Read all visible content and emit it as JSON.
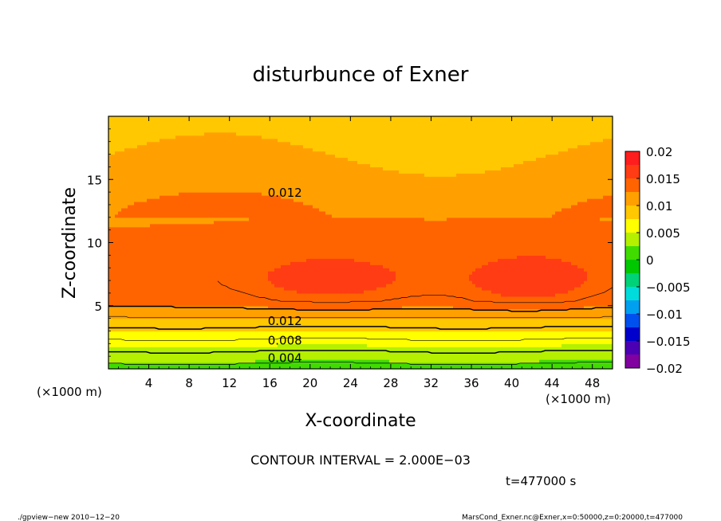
{
  "chart_data": {
    "type": "heatmap",
    "title": "disturbunce of Exner",
    "xlabel": "X-coordinate",
    "ylabel": "Z-coordinate",
    "x_unit_left": "(×1000 m)",
    "x_unit_right": "(×1000 m)",
    "xlim": [
      0,
      50
    ],
    "ylim": [
      0,
      20
    ],
    "x_ticks": [
      4,
      8,
      12,
      16,
      20,
      24,
      28,
      32,
      36,
      40,
      44,
      48
    ],
    "x_tick_labels": [
      "4",
      "8",
      "12",
      "16",
      "20",
      "24",
      "28",
      "32",
      "36",
      "40",
      "44",
      "48"
    ],
    "y_ticks": [
      5,
      10,
      15
    ],
    "y_tick_labels": [
      "5",
      "10",
      "15"
    ],
    "contour_labels": [
      {
        "text": "0.012",
        "x": 17.5,
        "z": 14.0
      },
      {
        "text": "0.012",
        "x": 17.5,
        "z": 3.85
      },
      {
        "text": "0.008",
        "x": 17.5,
        "z": 2.3
      },
      {
        "text": "0.004",
        "x": 17.5,
        "z": 0.9
      }
    ],
    "colorbar": {
      "min": -0.02,
      "max": 0.02,
      "step": 0.0025,
      "tick_values": [
        0.02,
        0.015,
        0.01,
        0.005,
        0,
        -0.005,
        -0.01,
        -0.015,
        -0.02
      ],
      "tick_labels": [
        "0.02",
        "0.015",
        "0.01",
        "0.005",
        "0",
        "−0.005",
        "−0.01",
        "−0.015",
        "−0.02"
      ],
      "colors": [
        "#8000a0",
        "#4b00b4",
        "#0000cd",
        "#0050f0",
        "#00a0f0",
        "#00dcdc",
        "#00d278",
        "#00c800",
        "#40dc00",
        "#b4f000",
        "#ffff00",
        "#ffc800",
        "#ffa000",
        "#ff6400",
        "#ff3c14",
        "#ff1e1e",
        "#ff6478"
      ]
    },
    "field_model": {
      "surface_value": 0.0012,
      "layer_gradient_per_km": 0.0021,
      "mid_value": 0.0124,
      "mid_bump_amplitude": 0.0032,
      "top_value": 0.0088
    },
    "contour_interval_text": "CONTOUR INTERVAL = 2.000E−03",
    "time_text": "t=477000 s"
  },
  "footer": {
    "left": "./gpview−new  2010−12−20",
    "right": "MarsCond_Exner.nc@Exner,x=0:50000,z=0:20000,t=477000"
  }
}
